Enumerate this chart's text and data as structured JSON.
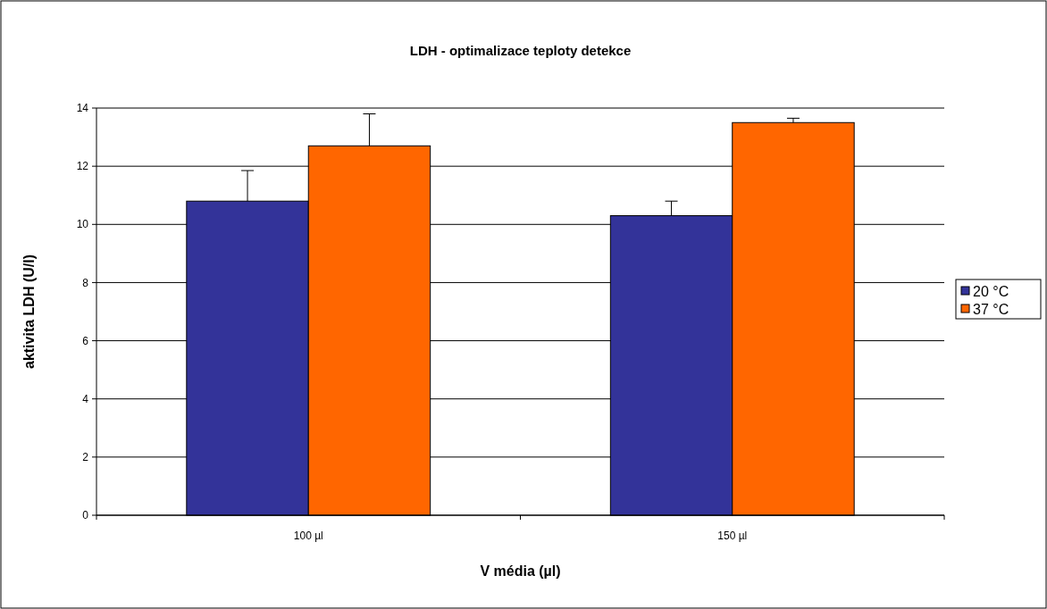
{
  "chart_data": {
    "type": "bar",
    "title": "LDH - optimalizace teploty detekce",
    "xlabel": "V média (µl)",
    "ylabel": "aktivita LDH (U/l)",
    "categories": [
      "100 µl",
      "150 µl"
    ],
    "series": [
      {
        "name": "20 °C",
        "color": "#333399",
        "values": [
          10.8,
          10.3
        ],
        "errors": [
          [
            10.8,
            11.85
          ],
          [
            10.3,
            10.8
          ]
        ]
      },
      {
        "name": "37 °C",
        "color": "#ff6600",
        "values": [
          12.7,
          13.5
        ],
        "errors": [
          [
            12.7,
            13.8
          ],
          [
            13.5,
            13.65
          ]
        ]
      }
    ],
    "ylim": [
      0,
      14
    ],
    "yticks": [
      0,
      2,
      4,
      6,
      8,
      10,
      12,
      14
    ],
    "grid": "y",
    "legend": "right"
  }
}
